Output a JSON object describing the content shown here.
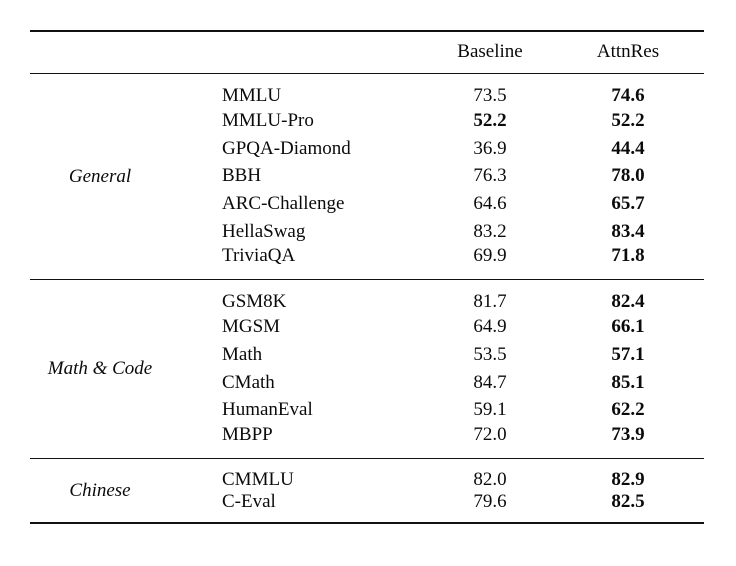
{
  "table": {
    "header": {
      "baseline": "Baseline",
      "attnres": "AttnRes"
    },
    "groups": [
      {
        "label": "General",
        "rows": [
          {
            "name": "MMLU",
            "baseline": "73.5",
            "attnres": "74.6",
            "bold": [
              "attnres"
            ]
          },
          {
            "name": "MMLU-Pro",
            "baseline": "52.2",
            "attnres": "52.2",
            "bold": [
              "baseline",
              "attnres"
            ]
          },
          {
            "name": "GPQA-Diamond",
            "baseline": "36.9",
            "attnres": "44.4",
            "bold": [
              "attnres"
            ]
          },
          {
            "name": "BBH",
            "baseline": "76.3",
            "attnres": "78.0",
            "bold": [
              "attnres"
            ]
          },
          {
            "name": "ARC-Challenge",
            "baseline": "64.6",
            "attnres": "65.7",
            "bold": [
              "attnres"
            ]
          },
          {
            "name": "HellaSwag",
            "baseline": "83.2",
            "attnres": "83.4",
            "bold": [
              "attnres"
            ]
          },
          {
            "name": "TriviaQA",
            "baseline": "69.9",
            "attnres": "71.8",
            "bold": [
              "attnres"
            ]
          }
        ]
      },
      {
        "label": "Math & Code",
        "rows": [
          {
            "name": "GSM8K",
            "baseline": "81.7",
            "attnres": "82.4",
            "bold": [
              "attnres"
            ]
          },
          {
            "name": "MGSM",
            "baseline": "64.9",
            "attnres": "66.1",
            "bold": [
              "attnres"
            ]
          },
          {
            "name": "Math",
            "baseline": "53.5",
            "attnres": "57.1",
            "bold": [
              "attnres"
            ]
          },
          {
            "name": "CMath",
            "baseline": "84.7",
            "attnres": "85.1",
            "bold": [
              "attnres"
            ]
          },
          {
            "name": "HumanEval",
            "baseline": "59.1",
            "attnres": "62.2",
            "bold": [
              "attnres"
            ]
          },
          {
            "name": "MBPP",
            "baseline": "72.0",
            "attnres": "73.9",
            "bold": [
              "attnres"
            ]
          }
        ]
      },
      {
        "label": "Chinese",
        "rows": [
          {
            "name": "CMMLU",
            "baseline": "82.0",
            "attnres": "82.9",
            "bold": [
              "attnres"
            ]
          },
          {
            "name": "C-Eval",
            "baseline": "79.6",
            "attnres": "82.5",
            "bold": [
              "attnres"
            ]
          }
        ]
      }
    ],
    "colors": {
      "text": "#0b0b0b",
      "background": "#ffffff",
      "rule": "#111111"
    }
  }
}
